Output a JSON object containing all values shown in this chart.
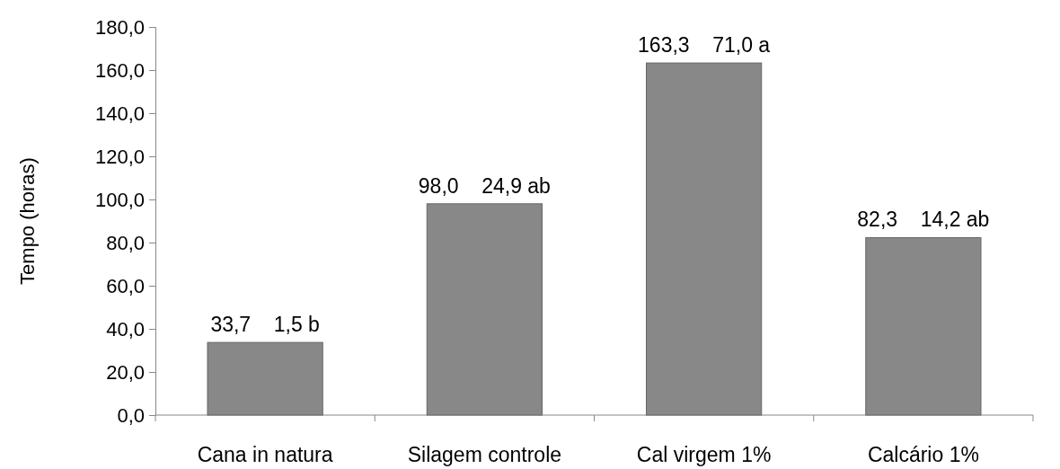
{
  "chart_data": {
    "type": "bar",
    "ylabel": "Tempo (horas)",
    "categories": [
      "Cana in natura",
      "Silagem controle",
      "Cal virgem 1%",
      "Calcário 1%"
    ],
    "values": [
      33.7,
      98.0,
      163.3,
      82.3
    ],
    "value_labels": [
      "33,7    1,5 b",
      "98,0    24,9 ab",
      "163,3    71,0 a",
      "82,3    14,2 ab"
    ],
    "color": "#888888",
    "ylim": [
      0,
      180
    ],
    "yticks": [
      {
        "value": 0,
        "label": "0,0"
      },
      {
        "value": 20,
        "label": "20,0"
      },
      {
        "value": 40,
        "label": "40,0"
      },
      {
        "value": 60,
        "label": "60,0"
      },
      {
        "value": 80,
        "label": "80,0"
      },
      {
        "value": 100,
        "label": "100,0"
      },
      {
        "value": 120,
        "label": "120,0"
      },
      {
        "value": 140,
        "label": "140,0"
      },
      {
        "value": 160,
        "label": "160,0"
      },
      {
        "value": 180,
        "label": "180,0"
      }
    ],
    "grid": false
  }
}
